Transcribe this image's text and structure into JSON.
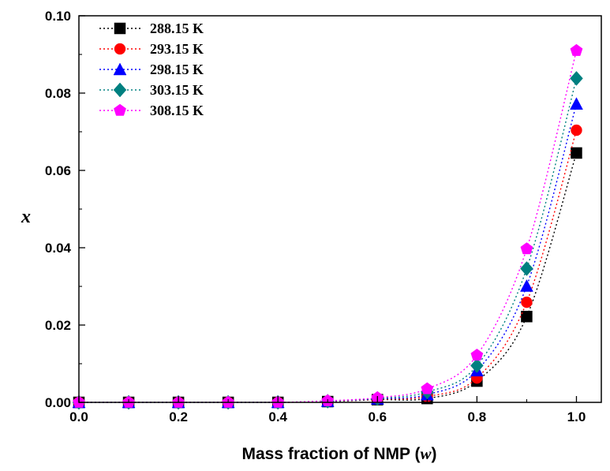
{
  "chart_data": {
    "type": "line",
    "title": "",
    "xlabel": "Mass fraction of NMP (",
    "xlabel_var": "w",
    "xlabel_close": ")",
    "ylabel": "x",
    "xlim": [
      0.0,
      1.05
    ],
    "ylim": [
      0.0,
      0.1
    ],
    "x_ticks": [
      "0.0",
      "0.2",
      "0.4",
      "0.6",
      "0.8",
      "1.0"
    ],
    "y_ticks": [
      "0.00",
      "0.02",
      "0.04",
      "0.06",
      "0.08",
      "0.10"
    ],
    "x_tick_values": [
      0.0,
      0.2,
      0.4,
      0.6,
      0.8,
      1.0
    ],
    "y_tick_values": [
      0.0,
      0.02,
      0.04,
      0.06,
      0.08,
      0.1
    ],
    "grid": false,
    "legend_position": "top-left",
    "x": [
      0.0,
      0.1,
      0.2,
      0.3,
      0.4,
      0.5,
      0.6,
      0.7,
      0.8,
      0.9,
      1.0
    ],
    "series": [
      {
        "name": "288.15 K",
        "color": "#000000",
        "marker": "square",
        "values": [
          0.0,
          0.0,
          0.0,
          0.0,
          0.0,
          0.0002,
          0.0007,
          0.001,
          0.0055,
          0.0222,
          0.0645
        ]
      },
      {
        "name": "293.15 K",
        "color": "#ff0000",
        "marker": "circle",
        "values": [
          0.0,
          0.0,
          0.0,
          0.0,
          0.0,
          0.0002,
          0.0008,
          0.0015,
          0.0063,
          0.0259,
          0.0704
        ]
      },
      {
        "name": "298.15 K",
        "color": "#0000ff",
        "marker": "triangle",
        "values": [
          0.0,
          0.0,
          0.0,
          0.0,
          0.0,
          0.0003,
          0.0009,
          0.002,
          0.0082,
          0.0301,
          0.0772
        ]
      },
      {
        "name": "303.15 K",
        "color": "#008080",
        "marker": "diamond",
        "values": [
          0.0,
          0.0,
          0.0,
          0.0,
          0.0,
          0.0003,
          0.001,
          0.0027,
          0.0095,
          0.0346,
          0.0838
        ]
      },
      {
        "name": "308.15 K",
        "color": "#ff00ff",
        "marker": "pentagon",
        "values": [
          0.0,
          0.0,
          0.0,
          0.0,
          0.0,
          0.0004,
          0.0012,
          0.0035,
          0.0122,
          0.0397,
          0.091
        ]
      }
    ]
  }
}
